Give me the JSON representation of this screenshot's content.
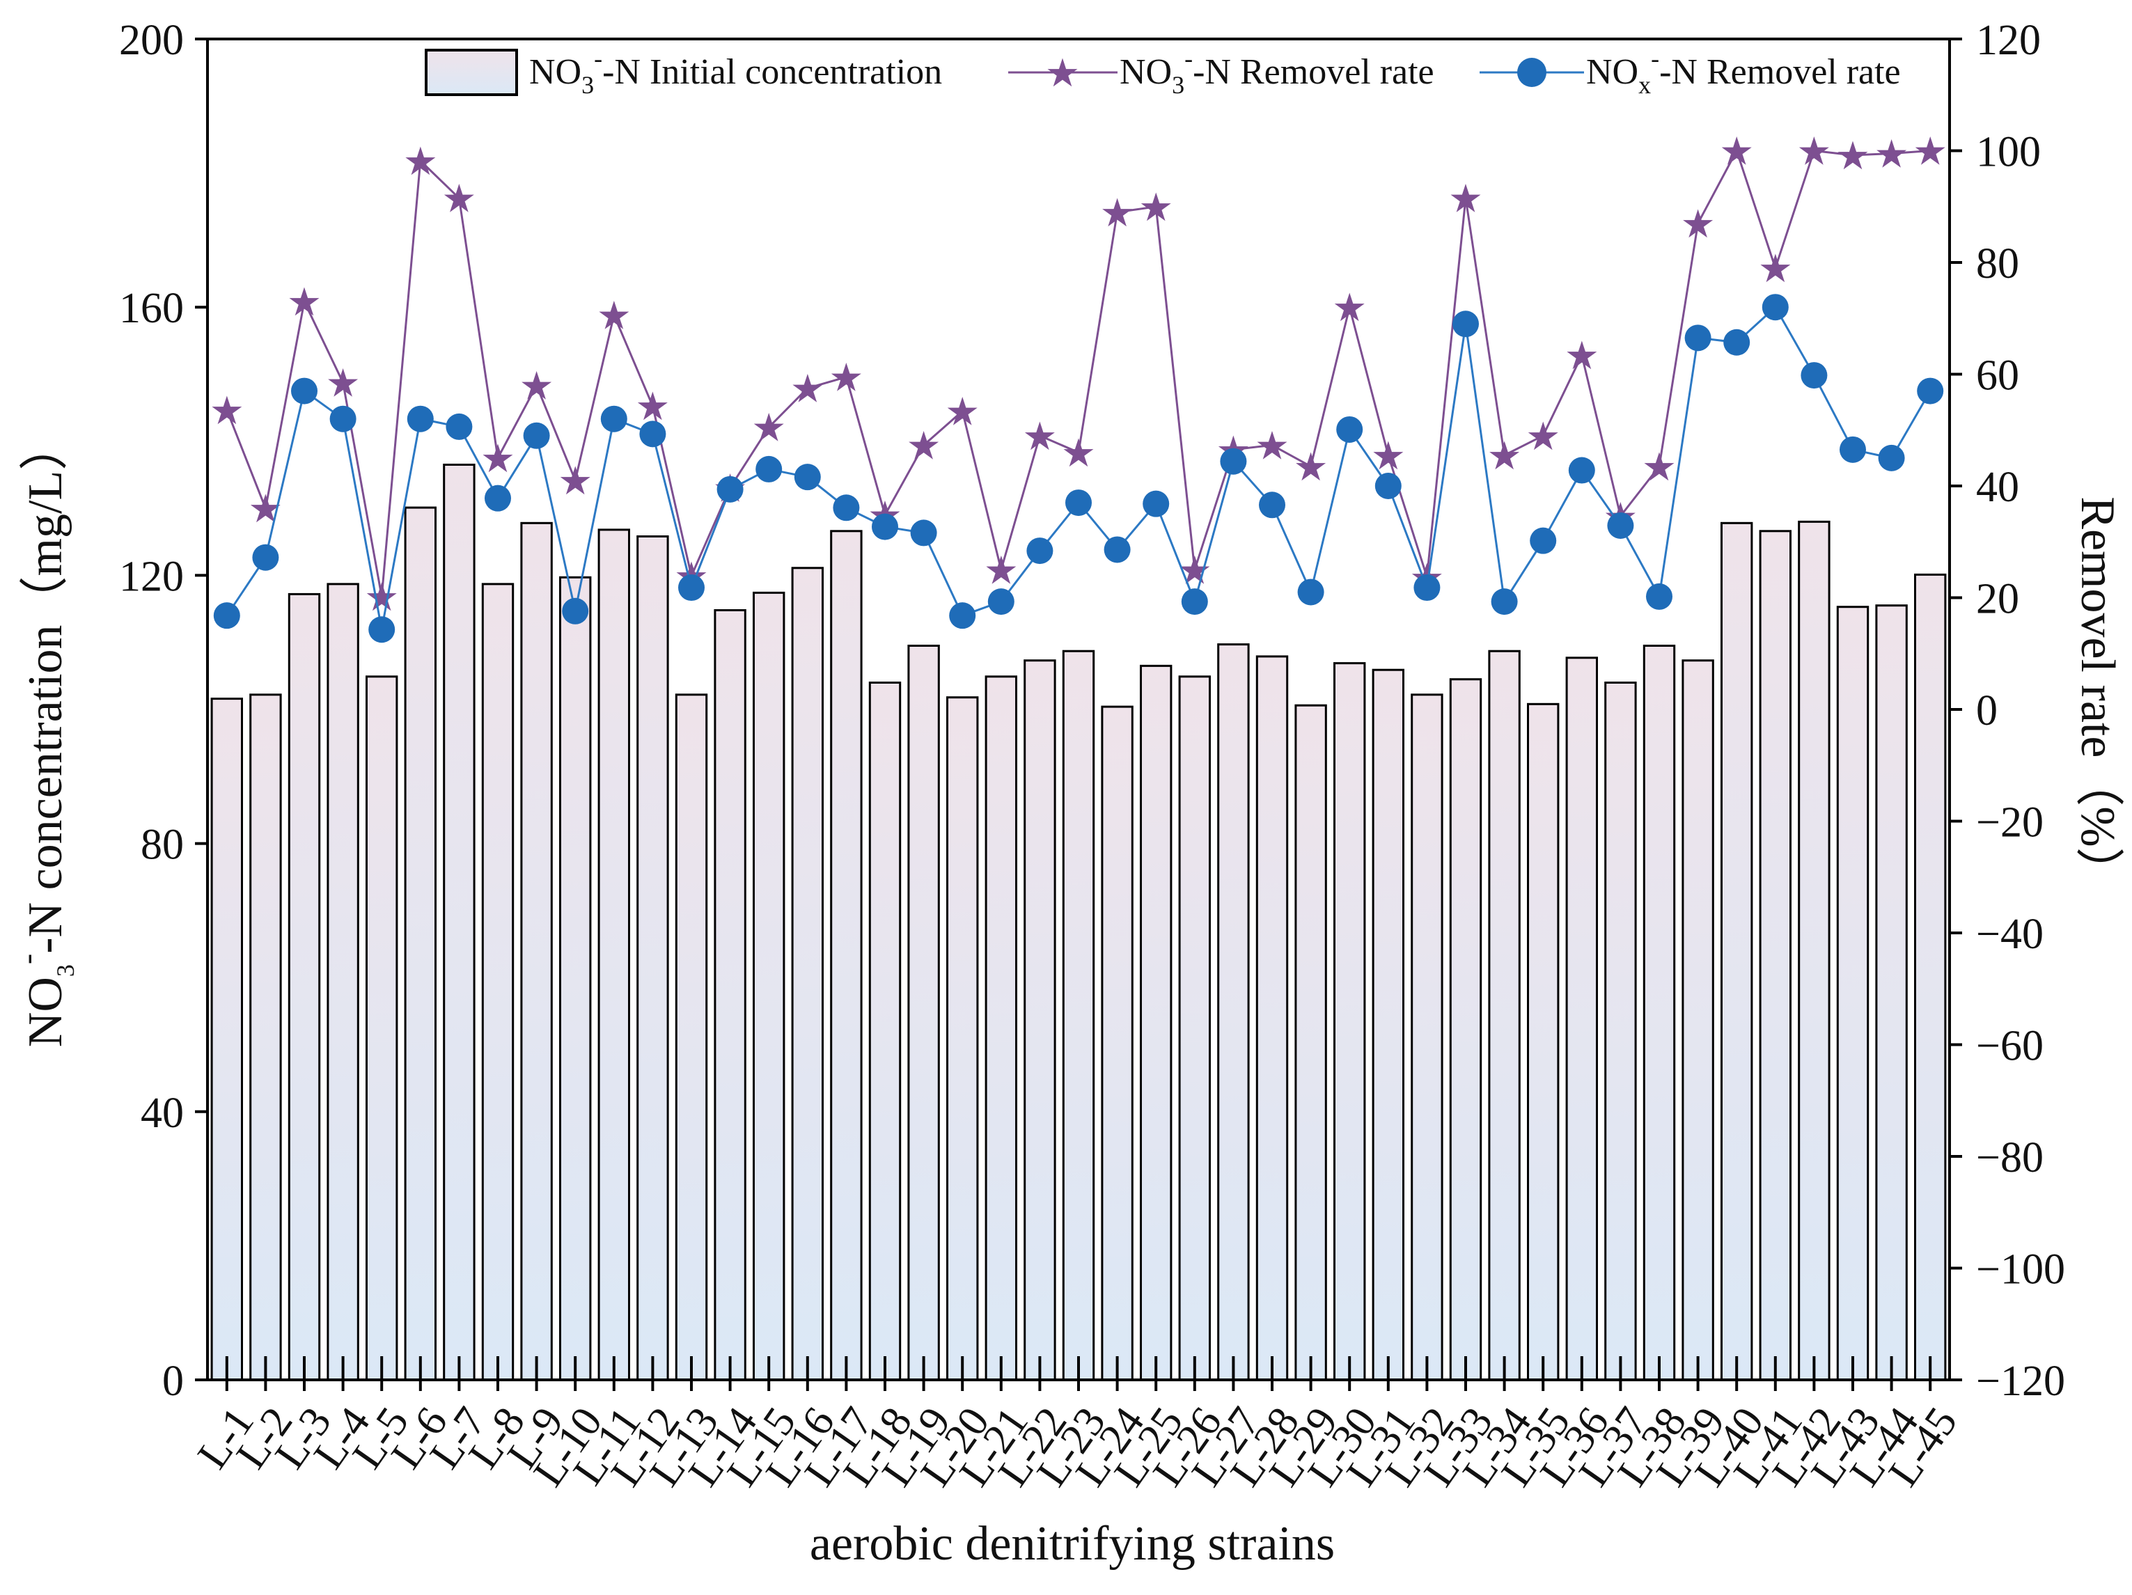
{
  "chart_data": {
    "type": "bar+line",
    "xlabel": "aerobic denitrifying strains",
    "ylabel_left": {
      "main": "NO",
      "sub": "3",
      "sup": "-",
      "rest": "-N concentration（mg/L）"
    },
    "ylabel_right": "Removel rate（%）",
    "ylim_left": [
      0,
      200
    ],
    "yticks_left": [
      0,
      40,
      80,
      120,
      160,
      200
    ],
    "ylim_right": [
      -120,
      120
    ],
    "yticks_right": [
      -120,
      -100,
      -80,
      -60,
      -40,
      -20,
      0,
      20,
      40,
      60,
      80,
      100,
      120
    ],
    "categories": [
      "L-1",
      "L-2",
      "L-3",
      "L-4",
      "L-5",
      "L-6",
      "L-7",
      "L-8",
      "L-9",
      "L-10",
      "L-11",
      "L-12",
      "L-13",
      "L-14",
      "L-15",
      "L-16",
      "L-17",
      "L-18",
      "L-19",
      "L-20",
      "L-21",
      "L-22",
      "L-23",
      "L-24",
      "L-25",
      "L-26",
      "L-27",
      "L-28",
      "L-29",
      "L-30",
      "L-31",
      "L-32",
      "L-33",
      "L-34",
      "L-35",
      "L-36",
      "L-37",
      "L-38",
      "L-39",
      "L-40",
      "L-41",
      "L-42",
      "L-43",
      "L-44",
      "L-45"
    ],
    "series": [
      {
        "name": "NO3- -N Initial concentration",
        "legend": {
          "a": "NO",
          "sub": "3",
          "sup": "-",
          "b": "-N Initial concentration"
        },
        "kind": "bar",
        "axis": "left",
        "values": [
          101.6,
          102.2,
          117.2,
          118.7,
          104.9,
          130.1,
          136.5,
          118.7,
          127.8,
          119.7,
          126.8,
          125.8,
          102.2,
          114.8,
          117.4,
          121.1,
          126.6,
          104.0,
          109.5,
          101.8,
          104.9,
          107.3,
          108.7,
          100.4,
          106.5,
          104.9,
          109.7,
          107.9,
          100.6,
          106.9,
          105.9,
          102.2,
          104.5,
          108.7,
          100.8,
          107.7,
          104.0,
          109.5,
          107.3,
          127.8,
          126.6,
          128.0,
          115.3,
          115.5,
          120.1
        ]
      },
      {
        "name": "NO3- -N Removel rate",
        "legend": {
          "a": "NO",
          "sub": "3",
          "sup": "-",
          "b": "-N Removel rate"
        },
        "kind": "line",
        "marker": "star",
        "axis": "right",
        "values": [
          53.6,
          36.0,
          73.0,
          58.5,
          20.2,
          98.2,
          91.5,
          45.0,
          58.0,
          41.0,
          70.6,
          54.3,
          23.9,
          39.7,
          50.5,
          57.5,
          59.5,
          34.8,
          47.3,
          53.4,
          25.0,
          49.0,
          46.0,
          89.0,
          90.0,
          25.0,
          46.5,
          47.3,
          43.5,
          72.0,
          45.5,
          23.7,
          91.5,
          45.5,
          49.0,
          63.4,
          34.6,
          43.5,
          87.0,
          100.0,
          79.0,
          100.0,
          99.2,
          99.5,
          100.0
        ]
      },
      {
        "name": "NOx- -N Removel rate",
        "legend": {
          "a": "NO",
          "sub": "x",
          "sup": "-",
          "b": "-N Removel rate"
        },
        "kind": "line",
        "marker": "circle",
        "axis": "right",
        "values": [
          16.8,
          27.2,
          57.0,
          52.0,
          14.3,
          52.0,
          50.6,
          37.8,
          49.0,
          17.6,
          52.0,
          49.3,
          21.8,
          39.4,
          43.0,
          41.6,
          36.1,
          32.7,
          31.6,
          16.8,
          19.3,
          28.4,
          37.0,
          28.6,
          36.8,
          19.3,
          44.4,
          36.6,
          21.0,
          50.1,
          40.0,
          21.8,
          69.0,
          19.3,
          30.2,
          42.8,
          32.9,
          20.2,
          66.5,
          65.7,
          72.0,
          59.8,
          46.5,
          45.0,
          57.0
        ]
      }
    ],
    "legend_position": "top-right",
    "colors": {
      "bar_top": "#efe3ea",
      "bar_bottom": "#dbe8f6",
      "bar_edge": "#000000",
      "star": "#7d4f91",
      "circle_fill": "#1f6cb8",
      "circle_line": "#2c79c4"
    }
  }
}
